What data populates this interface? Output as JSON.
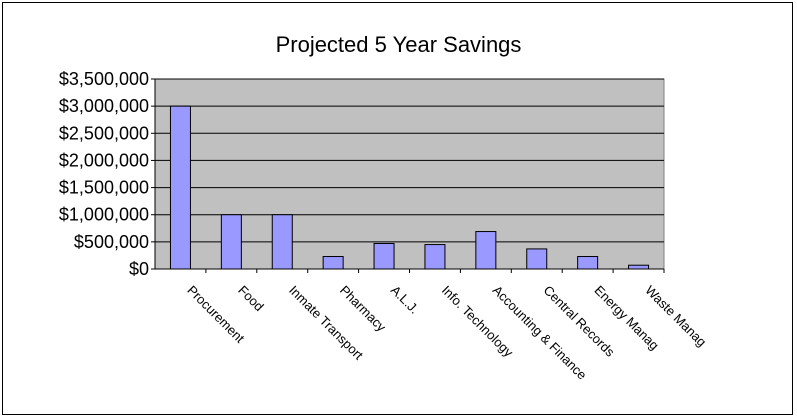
{
  "chart_data": {
    "type": "bar",
    "title": "Projected 5 Year Savings",
    "xlabel": "",
    "ylabel": "",
    "categories": [
      "Procurement",
      "Food",
      "Inmate Transport",
      "Pharmacy",
      "A.L.J.",
      "Info. Technology",
      "Accounting & Finance",
      "Central Records",
      "Energy Manag",
      "Waste Manag"
    ],
    "values": [
      3000000,
      1000000,
      1000000,
      230000,
      470000,
      450000,
      690000,
      370000,
      230000,
      70000
    ],
    "ylim": [
      0,
      3500000
    ],
    "yticks": [
      "$0",
      "$500,000",
      "$1,000,000",
      "$1,500,000",
      "$2,000,000",
      "$2,500,000",
      "$3,000,000",
      "$3,500,000"
    ],
    "grid": true,
    "colors": {
      "bar": "#9999ff",
      "plot_background": "#c0c0c0",
      "bar_border": "#000000"
    }
  }
}
